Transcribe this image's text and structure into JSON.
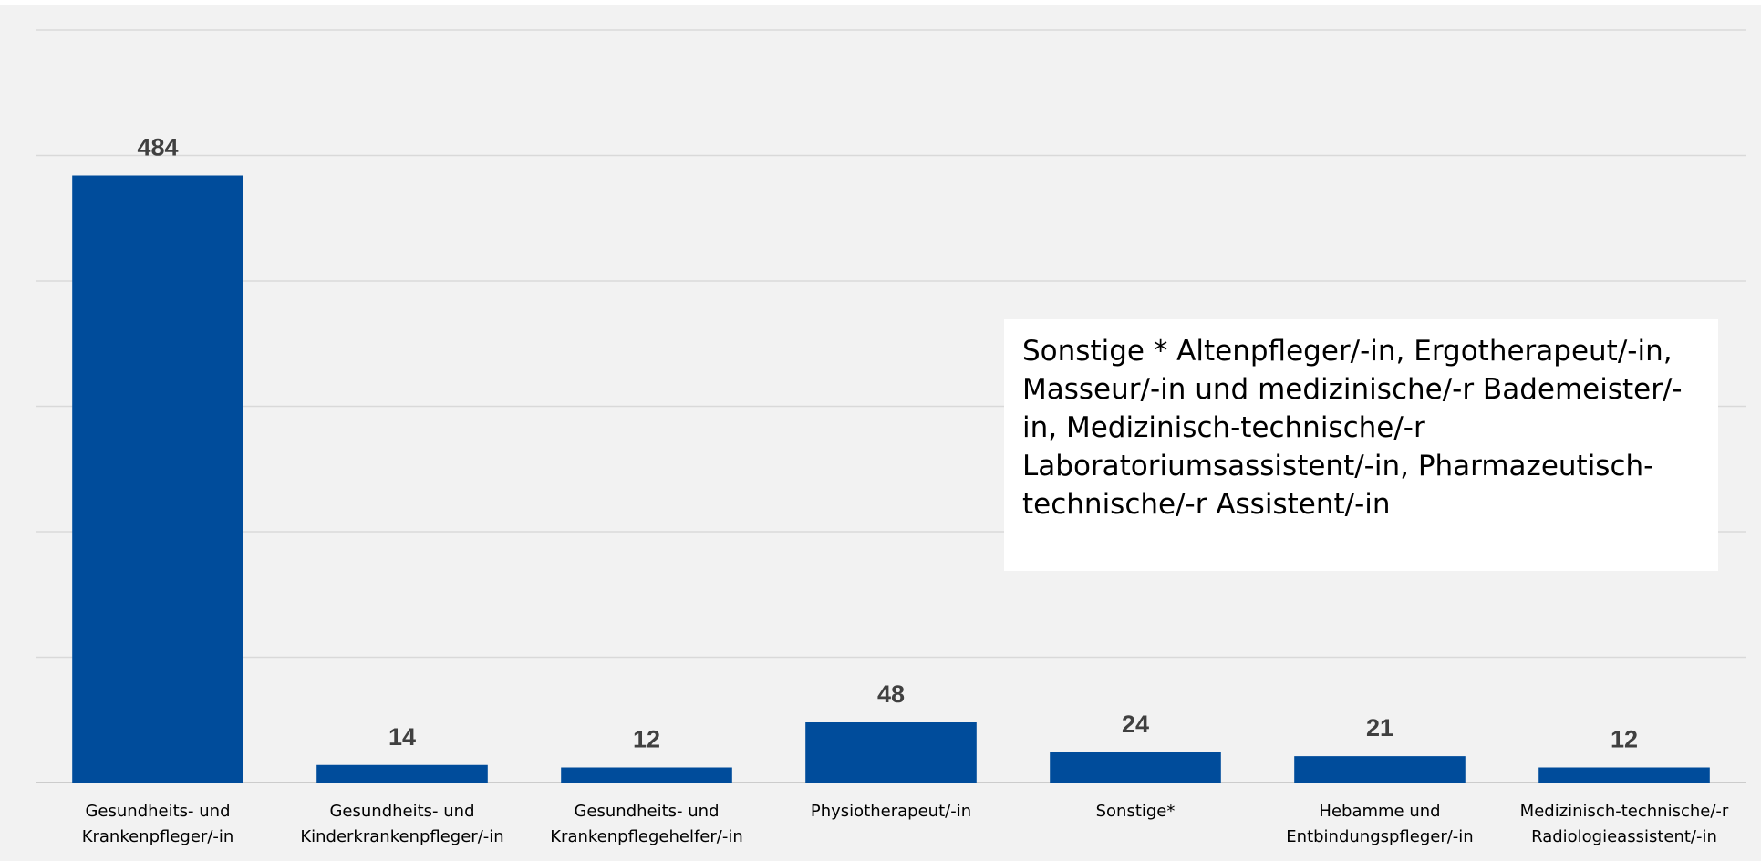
{
  "chart_data": {
    "type": "bar",
    "categories": [
      "Gesundheits- und\nKrankenpfleger/-in",
      "Gesundheits- und\nKinderkrankenpfleger/-in",
      "Gesundheits- und\nKrankenpflegehelfer/-in",
      "Physiotherapeut/-in",
      "Sonstige*",
      "Hebamme und\nEntbindungspfleger/-in",
      "Medizinisch-technische/-r\nRadiologieassistent/-in"
    ],
    "values": [
      484,
      14,
      12,
      48,
      24,
      21,
      12
    ],
    "color": "#004c9b",
    "ylim": [
      0,
      600
    ],
    "yticks": [
      0,
      100,
      200,
      300,
      400,
      500,
      600
    ],
    "grid": true,
    "annotation": "Sonstige * Altenpfleger/-in, Ergotherapeut/-in, Masseur/-in und medizinische/-r Bademeister/-in, Medizinisch-technische/-r Laboratoriumsassistent/-in, Pharmazeutisch-technische/-r Assistent/-in"
  }
}
